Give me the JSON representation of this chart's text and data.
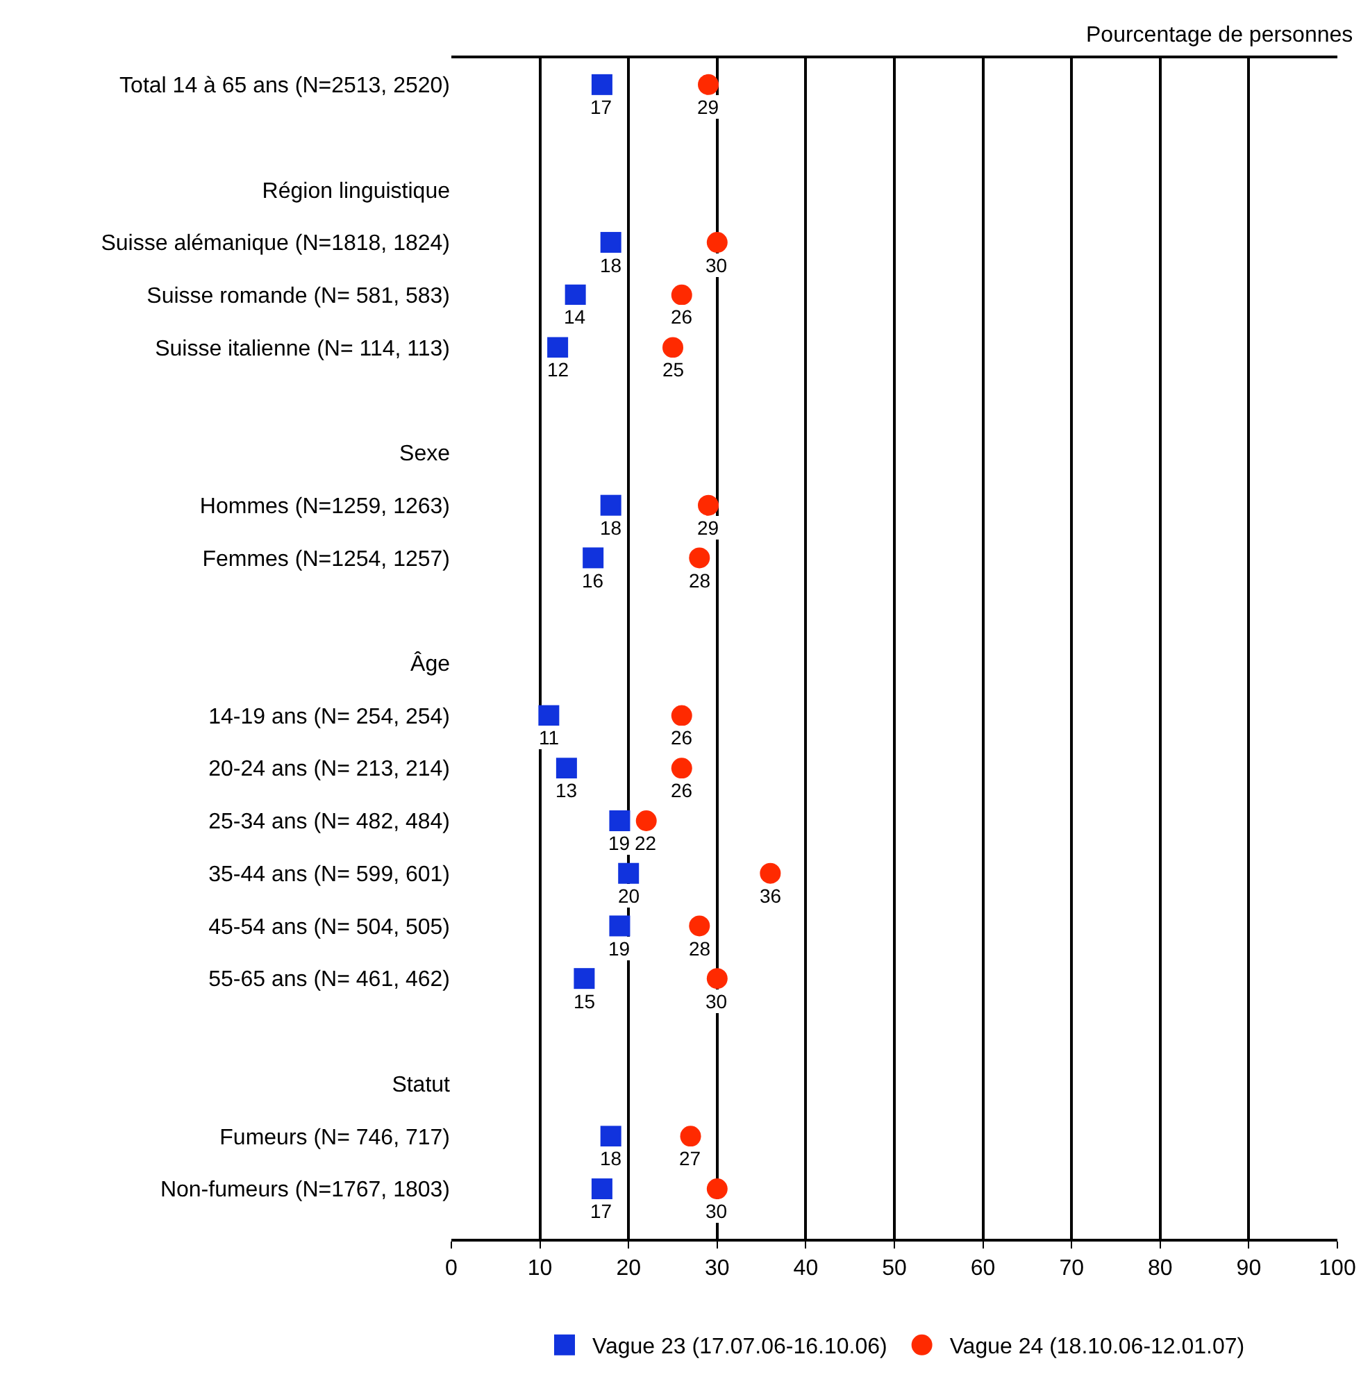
{
  "chart_data": {
    "type": "scatter",
    "orientation": "horizontal",
    "xlabel": "Pourcentage de personnes",
    "categories": [
      "Total 14 à 65 ans (N=2513, 2520)",
      null,
      "Région linguistique",
      "Suisse alémanique (N=1818, 1824)",
      "Suisse romande (N= 581, 583)",
      "Suisse italienne (N= 114, 113)",
      null,
      "Sexe",
      "Hommes (N=1259, 1263)",
      "Femmes (N=1254, 1257)",
      null,
      "Âge",
      "14-19 ans (N= 254, 254)",
      "20-24 ans (N= 213, 214)",
      "25-34 ans (N= 482, 484)",
      "35-44 ans (N= 599, 601)",
      "45-54 ans (N= 504, 505)",
      "55-65 ans (N= 461, 462)",
      null,
      "Statut",
      "Fumeurs (N= 746, 717)",
      "Non-fumeurs (N=1767, 1803)"
    ],
    "series": [
      {
        "name": "Vague 23 (17.07.06-16.10.06)",
        "color": "#1133dd",
        "marker": "square",
        "values": [
          17,
          null,
          null,
          18,
          14,
          12,
          null,
          null,
          18,
          16,
          null,
          null,
          11,
          13,
          19,
          20,
          19,
          15,
          null,
          null,
          18,
          17
        ]
      },
      {
        "name": "Vague 24 (18.10.06-12.01.07)",
        "color": "#ff2a00",
        "marker": "circle",
        "values": [
          29,
          null,
          null,
          30,
          26,
          25,
          null,
          null,
          29,
          28,
          null,
          null,
          26,
          26,
          22,
          36,
          28,
          30,
          null,
          null,
          27,
          30
        ]
      }
    ],
    "xlim": [
      0,
      100
    ],
    "xticks": [
      0,
      10,
      20,
      30,
      40,
      50,
      60,
      70,
      80,
      90,
      100
    ],
    "grid": "x",
    "legend": "bottom",
    "data_labels": true
  }
}
